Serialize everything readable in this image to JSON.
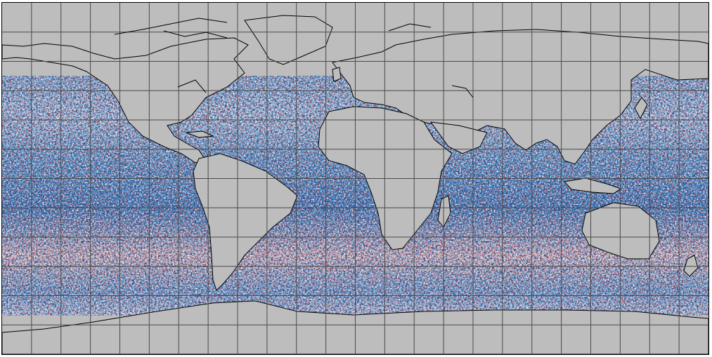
{
  "map": {
    "projection": "plate-carree",
    "extent_lon": [
      -180,
      180
    ],
    "extent_lat": [
      -90,
      90
    ],
    "gridlines": {
      "lon_step": 15,
      "lat_step": 15,
      "color": "#4a4a4a"
    },
    "land_color": "#bdbdbd",
    "coastline_color": "#000000",
    "colormap": [
      "#08306b",
      "#2171b5",
      "#6baed6",
      "#c6dbef",
      "#f7f7f7",
      "#fddbc7",
      "#ef3b2c",
      "#a50f15"
    ],
    "ocean_data_lat_range": [
      -72,
      70
    ]
  }
}
